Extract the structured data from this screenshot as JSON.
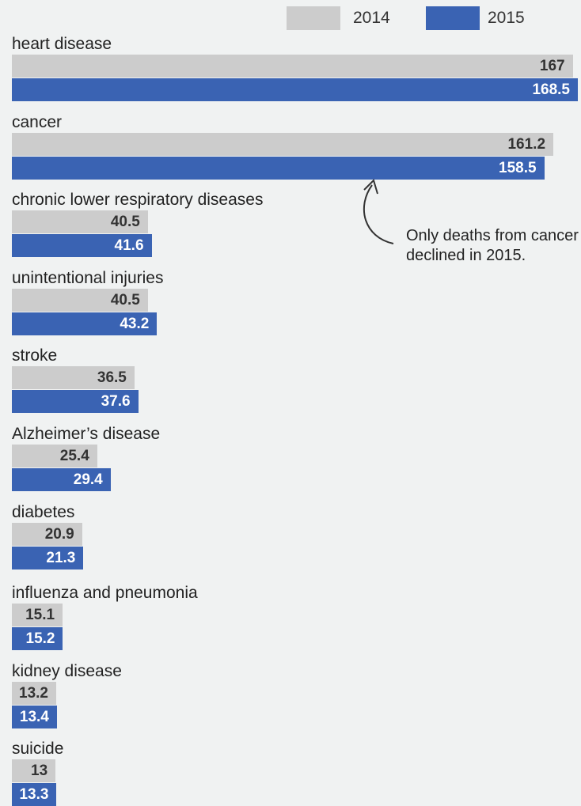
{
  "chart_data": {
    "type": "bar",
    "orientation": "horizontal",
    "categories": [
      "heart disease",
      "cancer",
      "chronic lower respiratory diseases",
      "unintentional injuries",
      "stroke",
      "Alzheimer’s disease",
      "diabetes",
      "influenza and pneumonia",
      "kidney disease",
      "suicide"
    ],
    "series": [
      {
        "name": "2014",
        "color": "#cccccc",
        "values": [
          167,
          161.2,
          40.5,
          40.5,
          36.5,
          25.4,
          20.9,
          15.1,
          13.2,
          13
        ]
      },
      {
        "name": "2015",
        "color": "#3a63b3",
        "values": [
          168.5,
          158.5,
          41.6,
          43.2,
          37.6,
          29.4,
          21.3,
          15.2,
          13.4,
          13.3
        ]
      }
    ],
    "value_labels": [
      [
        "167",
        "161.2",
        "40.5",
        "40.5",
        "36.5",
        "25.4",
        "20.9",
        "15.1",
        "13.2",
        "13"
      ],
      [
        "168.5",
        "158.5",
        "41.6",
        "43.2",
        "37.6",
        "29.4",
        "21.3",
        "15.2",
        "13.4",
        "13.3"
      ]
    ],
    "xlim": [
      0,
      168.5
    ],
    "grid": false,
    "legend_position": "top-right",
    "annotation": "Only deaths from cancer declined in 2015."
  }
}
